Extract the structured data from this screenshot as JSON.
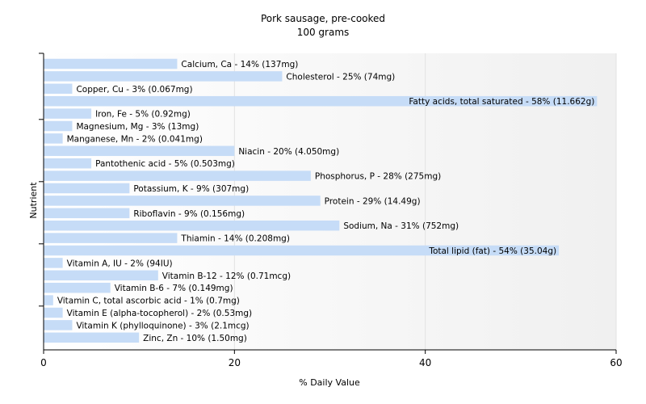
{
  "chart_data": {
    "type": "bar",
    "orientation": "horizontal",
    "title": "Pork sausage, pre-cooked",
    "subtitle": "100 grams",
    "xlabel": "% Daily Value",
    "ylabel": "Nutrient",
    "xlim": [
      0,
      60
    ],
    "xticks": [
      "0",
      "20",
      "40",
      "60"
    ],
    "grid": true,
    "colors": {
      "bar": "#c6dcf7",
      "grid": "#e2e2e2",
      "axis": "#000000"
    },
    "categories": [
      "Calcium, Ca",
      "Cholesterol",
      "Copper, Cu",
      "Fatty acids, total saturated",
      "Iron, Fe",
      "Magnesium, Mg",
      "Manganese, Mn",
      "Niacin",
      "Pantothenic acid",
      "Phosphorus, P",
      "Potassium, K",
      "Protein",
      "Riboflavin",
      "Sodium, Na",
      "Thiamin",
      "Total lipid (fat)",
      "Vitamin A, IU",
      "Vitamin B-12",
      "Vitamin B-6",
      "Vitamin C, total ascorbic acid",
      "Vitamin E (alpha-tocopherol)",
      "Vitamin K (phylloquinone)",
      "Zinc, Zn"
    ],
    "values": [
      14,
      25,
      3,
      58,
      5,
      3,
      2,
      20,
      5,
      28,
      9,
      29,
      9,
      31,
      14,
      54,
      2,
      12,
      7,
      1,
      2,
      3,
      10
    ],
    "labels": [
      "Calcium, Ca - 14% (137mg)",
      "Cholesterol - 25% (74mg)",
      "Copper, Cu - 3% (0.067mg)",
      "Fatty acids, total saturated - 58% (11.662g)",
      "Iron, Fe - 5% (0.92mg)",
      "Magnesium, Mg - 3% (13mg)",
      "Manganese, Mn - 2% (0.041mg)",
      "Niacin - 20% (4.050mg)",
      "Pantothenic acid - 5% (0.503mg)",
      "Phosphorus, P - 28% (275mg)",
      "Potassium, K - 9% (307mg)",
      "Protein - 29% (14.49g)",
      "Riboflavin - 9% (0.156mg)",
      "Sodium, Na - 31% (752mg)",
      "Thiamin - 14% (0.208mg)",
      "Total lipid (fat) - 54% (35.04g)",
      "Vitamin A, IU - 2% (94IU)",
      "Vitamin B-12 - 12% (0.71mcg)",
      "Vitamin B-6 - 7% (0.149mg)",
      "Vitamin C, total ascorbic acid - 1% (0.7mg)",
      "Vitamin E (alpha-tocopherol) - 2% (0.53mg)",
      "Vitamin K (phylloquinone) - 3% (2.1mcg)",
      "Zinc, Zn - 10% (1.50mg)"
    ]
  }
}
